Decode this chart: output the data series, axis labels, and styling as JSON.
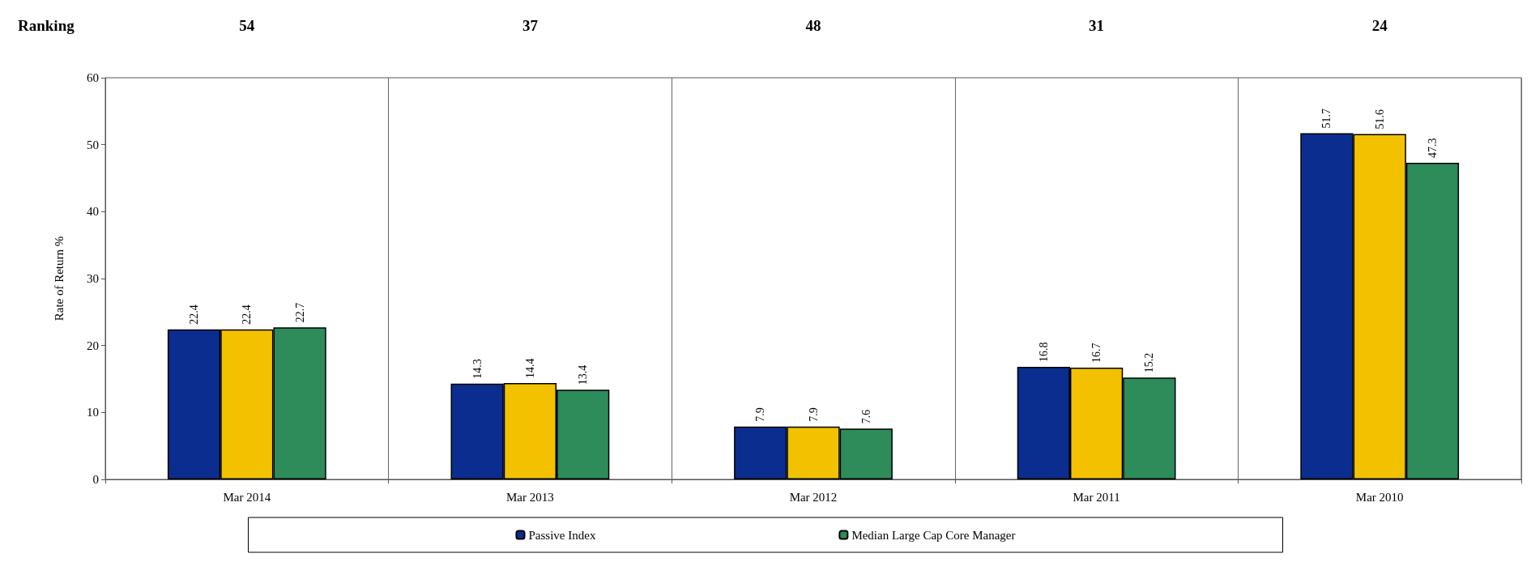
{
  "chart_data": {
    "type": "bar",
    "ylabel": "Rate of Return %",
    "categories": [
      "Mar 2014",
      "Mar 2013",
      "Mar 2012",
      "Mar 2011",
      "Mar 2010"
    ],
    "series": [
      {
        "name": "Passive Index",
        "color": "#0b2d8f",
        "values": [
          22.4,
          14.3,
          7.9,
          16.8,
          51.7
        ]
      },
      {
        "color": "#f2c200",
        "values": [
          22.4,
          14.4,
          7.9,
          16.7,
          51.6
        ]
      },
      {
        "name": "Median Large Cap Core Manager",
        "color": "#2e8b5a",
        "values": [
          22.7,
          13.4,
          7.6,
          15.2,
          47.3
        ]
      }
    ],
    "ylim": [
      0,
      60
    ],
    "yticks": [
      0,
      10,
      20,
      30,
      40,
      50,
      60
    ],
    "grid": "x",
    "legend": "bottom",
    "data_labels": true,
    "annotations": [
      "Ranking",
      "54",
      "37",
      "48",
      "31",
      "24"
    ]
  }
}
